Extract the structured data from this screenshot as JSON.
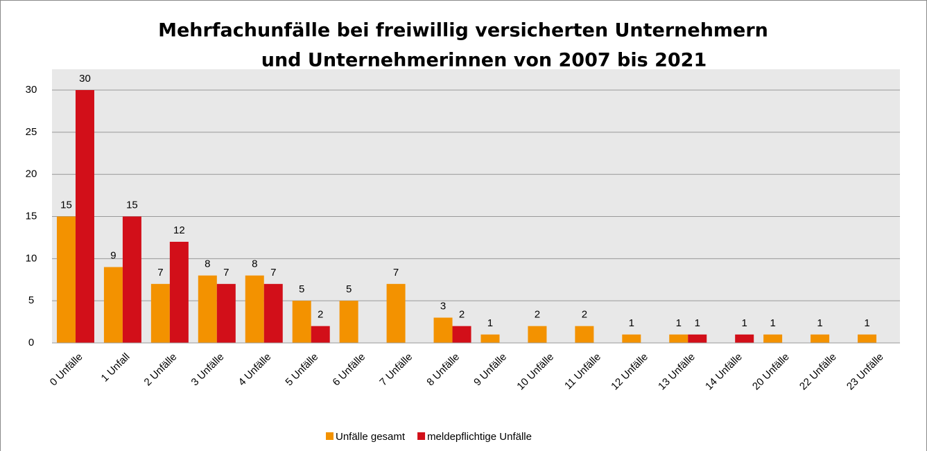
{
  "chart_data": {
    "type": "bar",
    "title": [
      "Mehrfachunfälle bei freiwillig versicherten Unternehmern",
      "und Unternehmerinnen von  2007 bis 2021"
    ],
    "categories": [
      "0 Unfälle",
      "1 Unfall",
      "2 Unfälle",
      "3 Unfälle",
      "4 Unfälle",
      "5 Unfälle",
      "6 Unfälle",
      "7 Unfälle",
      "8 Unfälle",
      "9 Unfälle",
      "10 Unfälle",
      "11 Unfälle",
      "12 Unfälle",
      "13 Unfälle",
      "14 Unfälle",
      "20 Unfälle",
      "22 Unfälle",
      "23 Unfälle"
    ],
    "series": [
      {
        "name": "Unfälle gesamt",
        "color": "#f39200",
        "values": [
          15,
          9,
          7,
          8,
          8,
          5,
          5,
          7,
          3,
          1,
          2,
          2,
          1,
          1,
          null,
          1,
          1,
          1
        ]
      },
      {
        "name": "meldepflichtige Unfälle",
        "color": "#d20f19",
        "values": [
          30,
          15,
          12,
          7,
          7,
          2,
          null,
          null,
          2,
          null,
          null,
          null,
          null,
          1,
          1,
          null,
          null,
          null
        ]
      }
    ],
    "ylim": [
      0,
      30
    ],
    "yticks": [
      0,
      5,
      10,
      15,
      20,
      25,
      30
    ],
    "grid": true,
    "legend": "bottom"
  }
}
